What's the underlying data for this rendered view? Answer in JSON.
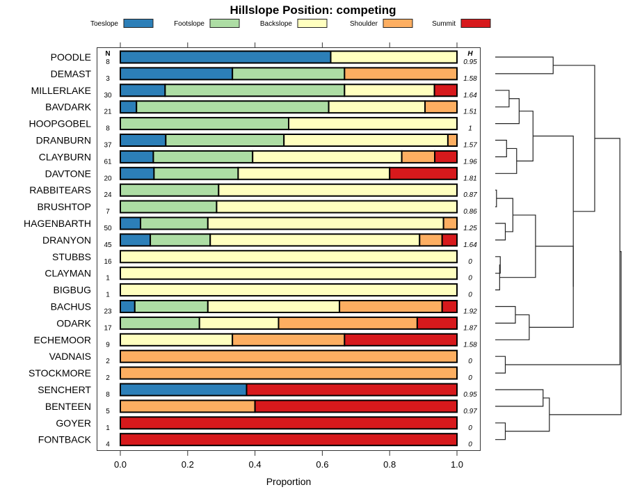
{
  "chart_data": {
    "type": "bar",
    "orientation": "horizontal-stacked",
    "title": "Hillslope Position: competing",
    "xlabel": "Proportion",
    "ylabel": "",
    "xlim": [
      0,
      1
    ],
    "x_ticks": [
      "0.0",
      "0.2",
      "0.4",
      "0.6",
      "0.8",
      "1.0"
    ],
    "x_tick_values": [
      0,
      0.2,
      0.4,
      0.6,
      0.8,
      1.0
    ],
    "grid": false,
    "legend_position": "top",
    "n_header": "N",
    "h_header": "H",
    "series": [
      {
        "name": "Toeslope",
        "color": "#2C7FB8"
      },
      {
        "name": "Footslope",
        "color": "#ADDDA4"
      },
      {
        "name": "Backslope",
        "color": "#FFFFBF"
      },
      {
        "name": "Shoulder",
        "color": "#FDAE61"
      },
      {
        "name": "Summit",
        "color": "#D7191C"
      }
    ],
    "categories": [
      "POODLE",
      "DEMAST",
      "MILLERLAKE",
      "BAVDARK",
      "HOOPGOBEL",
      "DRANBURN",
      "CLAYBURN",
      "DAVTONE",
      "RABBITEARS",
      "BRUSHTOP",
      "HAGENBARTH",
      "DRANYON",
      "STUBBS",
      "CLAYMAN",
      "BIGBUG",
      "BACHUS",
      "ODARK",
      "ECHEMOOR",
      "VADNAIS",
      "STOCKMORE",
      "SENCHERT",
      "BENTEEN",
      "GOYER",
      "FONTBACK"
    ],
    "rows": [
      {
        "name": "POODLE",
        "n": "8",
        "h": "0.95",
        "values": [
          0.625,
          0,
          0.375,
          0,
          0
        ]
      },
      {
        "name": "DEMAST",
        "n": "3",
        "h": "1.58",
        "values": [
          0.333,
          0.333,
          0,
          0.334,
          0
        ]
      },
      {
        "name": "MILLERLAKE",
        "n": "30",
        "h": "1.64",
        "values": [
          0.133,
          0.533,
          0.267,
          0,
          0.067
        ]
      },
      {
        "name": "BAVDARK",
        "n": "21",
        "h": "1.51",
        "values": [
          0.048,
          0.571,
          0.286,
          0.095,
          0
        ]
      },
      {
        "name": "HOOPGOBEL",
        "n": "8",
        "h": "1",
        "values": [
          0,
          0.5,
          0.5,
          0,
          0
        ]
      },
      {
        "name": "DRANBURN",
        "n": "37",
        "h": "1.57",
        "values": [
          0.135,
          0.351,
          0.487,
          0.027,
          0
        ]
      },
      {
        "name": "CLAYBURN",
        "n": "61",
        "h": "1.96",
        "values": [
          0.098,
          0.295,
          0.443,
          0.098,
          0.066
        ]
      },
      {
        "name": "DAVTONE",
        "n": "20",
        "h": "1.81",
        "values": [
          0.1,
          0.25,
          0.45,
          0,
          0.2
        ]
      },
      {
        "name": "RABBITEARS",
        "n": "24",
        "h": "0.87",
        "values": [
          0,
          0.292,
          0.708,
          0,
          0
        ]
      },
      {
        "name": "BRUSHTOP",
        "n": "7",
        "h": "0.86",
        "values": [
          0,
          0.286,
          0.714,
          0,
          0
        ]
      },
      {
        "name": "HAGENBARTH",
        "n": "50",
        "h": "1.25",
        "values": [
          0.06,
          0.2,
          0.7,
          0.04,
          0
        ]
      },
      {
        "name": "DRANYON",
        "n": "45",
        "h": "1.64",
        "values": [
          0.089,
          0.178,
          0.622,
          0.067,
          0.044
        ]
      },
      {
        "name": "STUBBS",
        "n": "16",
        "h": "0",
        "values": [
          0,
          0,
          1,
          0,
          0
        ]
      },
      {
        "name": "CLAYMAN",
        "n": "1",
        "h": "0",
        "values": [
          0,
          0,
          1,
          0,
          0
        ]
      },
      {
        "name": "BIGBUG",
        "n": "1",
        "h": "0",
        "values": [
          0,
          0,
          1,
          0,
          0
        ]
      },
      {
        "name": "BACHUS",
        "n": "23",
        "h": "1.92",
        "values": [
          0.043,
          0.217,
          0.391,
          0.305,
          0.044
        ]
      },
      {
        "name": "ODARK",
        "n": "17",
        "h": "1.87",
        "values": [
          0,
          0.235,
          0.235,
          0.412,
          0.118
        ]
      },
      {
        "name": "ECHEMOOR",
        "n": "9",
        "h": "1.58",
        "values": [
          0,
          0,
          0.333,
          0.333,
          0.334
        ]
      },
      {
        "name": "VADNAIS",
        "n": "2",
        "h": "0",
        "values": [
          0,
          0,
          0,
          1,
          0
        ]
      },
      {
        "name": "STOCKMORE",
        "n": "2",
        "h": "0",
        "values": [
          0,
          0,
          0,
          1,
          0
        ]
      },
      {
        "name": "SENCHERT",
        "n": "8",
        "h": "0.95",
        "values": [
          0.375,
          0,
          0,
          0,
          0.625
        ]
      },
      {
        "name": "BENTEEN",
        "n": "5",
        "h": "0.97",
        "values": [
          0,
          0,
          0,
          0.4,
          0.6
        ]
      },
      {
        "name": "GOYER",
        "n": "1",
        "h": "0",
        "values": [
          0,
          0,
          0,
          0,
          1
        ]
      },
      {
        "name": "FONTBACK",
        "n": "4",
        "h": "0",
        "values": [
          0,
          0,
          0,
          0,
          1
        ]
      }
    ],
    "dendrogram": {
      "leaf_order": [
        "POODLE",
        "DEMAST",
        "MILLERLAKE",
        "BAVDARK",
        "HOOPGOBEL",
        "DRANBURN",
        "CLAYBURN",
        "DAVTONE",
        "RABBITEARS",
        "BRUSHTOP",
        "HAGENBARTH",
        "DRANYON",
        "STUBBS",
        "CLAYMAN",
        "BIGBUG",
        "BACHUS",
        "ODARK",
        "ECHEMOOR",
        "VADNAIS",
        "STOCKMORE",
        "SENCHERT",
        "BENTEEN",
        "GOYER",
        "FONTBACK"
      ],
      "merges_relative_height": [
        {
          "id": "A",
          "children": [
            "POODLE",
            "DEMAST"
          ],
          "height": 0.46
        },
        {
          "id": "B",
          "children": [
            "MILLERLAKE",
            "BAVDARK"
          ],
          "height": 0.11
        },
        {
          "id": "C",
          "children": [
            "B",
            "HOOPGOBEL"
          ],
          "height": 0.19
        },
        {
          "id": "D",
          "children": [
            "DRANBURN",
            "CLAYBURN"
          ],
          "height": 0.09
        },
        {
          "id": "E",
          "children": [
            "D",
            "DAVTONE"
          ],
          "height": 0.17
        },
        {
          "id": "F",
          "children": [
            "C",
            "E"
          ],
          "height": 0.3
        },
        {
          "id": "G",
          "children": [
            "RABBITEARS",
            "BRUSHTOP"
          ],
          "height": 0.01
        },
        {
          "id": "H",
          "children": [
            "HAGENBARTH",
            "DRANYON"
          ],
          "height": 0.08
        },
        {
          "id": "I",
          "children": [
            "G",
            "H"
          ],
          "height": 0.14
        },
        {
          "id": "J0",
          "children": [
            "STUBBS",
            "CLAYMAN"
          ],
          "height": 0.04
        },
        {
          "id": "J",
          "children": [
            "J0",
            "BIGBUG"
          ],
          "height": 0.035
        },
        {
          "id": "K",
          "children": [
            "I",
            "J"
          ],
          "height": 0.32
        },
        {
          "id": "L",
          "children": [
            "BACHUS",
            "ODARK"
          ],
          "height": 0.16
        },
        {
          "id": "M",
          "children": [
            "L",
            "ECHEMOOR"
          ],
          "height": 0.27
        },
        {
          "id": "N",
          "children": [
            "K",
            "M"
          ],
          "height": 0.62
        },
        {
          "id": "O",
          "children": [
            "F",
            "N"
          ],
          "height": 0.62
        },
        {
          "id": "P",
          "children": [
            "A",
            "O"
          ],
          "height": 0.79
        },
        {
          "id": "Q",
          "children": [
            "VADNAIS",
            "STOCKMORE"
          ],
          "height": 0.08
        },
        {
          "id": "R",
          "children": [
            "P",
            "Q"
          ],
          "height": 0.99
        },
        {
          "id": "S",
          "children": [
            "SENCHERT",
            "BENTEEN"
          ],
          "height": 0.38
        },
        {
          "id": "T0",
          "children": [
            "GOYER",
            "FONTBACK"
          ],
          "height": 0.08
        },
        {
          "id": "T",
          "children": [
            "S",
            "T0"
          ],
          "height": 0.43
        },
        {
          "id": "ROOT",
          "children": [
            "R",
            "T"
          ],
          "height": 1.0
        }
      ]
    }
  }
}
